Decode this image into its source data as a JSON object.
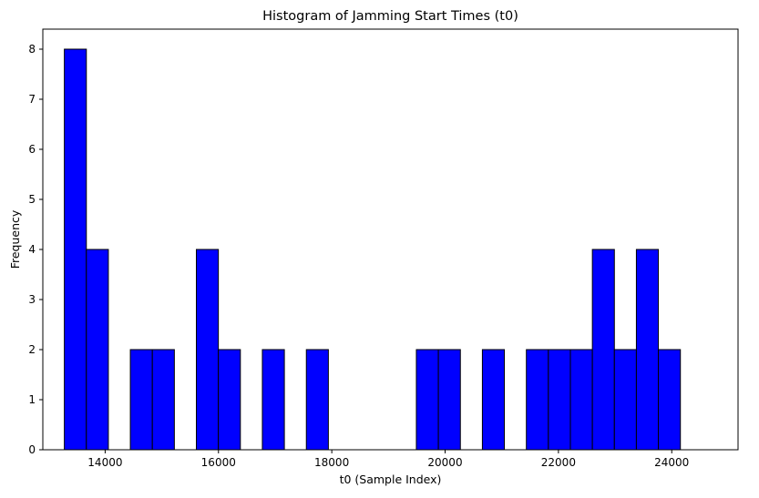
{
  "chart_data": {
    "type": "bar",
    "subtype": "histogram",
    "title": "Histogram of Jamming Start Times (t0)",
    "xlabel": "t0 (Sample Index)",
    "ylabel": "Frequency",
    "xlim": [
      12900,
      25170
    ],
    "ylim": [
      0,
      8.4
    ],
    "xticks": [
      14000,
      16000,
      18000,
      20000,
      22000,
      24000
    ],
    "yticks": [
      0,
      1,
      2,
      3,
      4,
      5,
      6,
      7,
      8
    ],
    "bin_start": 13280,
    "bin_width": 388.3,
    "counts": [
      8,
      4,
      0,
      2,
      2,
      0,
      4,
      2,
      0,
      2,
      0,
      2,
      0,
      0,
      0,
      0,
      2,
      2,
      0,
      2,
      0,
      2,
      2,
      2,
      4,
      2,
      4,
      2
    ],
    "bar_color": "#0000ff",
    "edge_color": "#000000",
    "grid": false,
    "legend": "none"
  }
}
